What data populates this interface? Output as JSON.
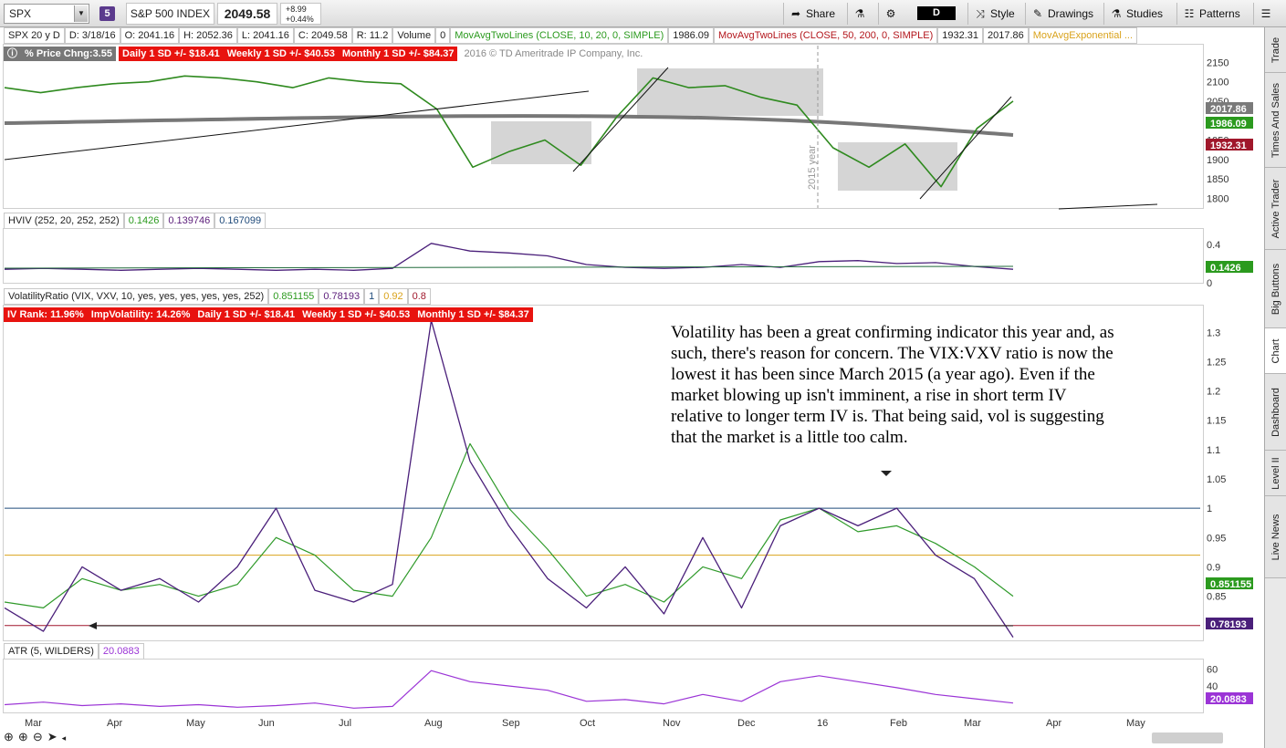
{
  "toolbar": {
    "symbol": "SPX",
    "link_badge": "5",
    "description": "S&P 500 INDEX",
    "last_price": "2049.58",
    "change_abs": "+8.99",
    "change_pct": "+0.44%",
    "share_label": "Share",
    "period": "D",
    "style_label": "Style",
    "drawings_label": "Drawings",
    "studies_label": "Studies",
    "patterns_label": "Patterns"
  },
  "price_header": {
    "chart_spec": "SPX 20 y D",
    "date": "D: 3/18/16",
    "open": "O: 2041.16",
    "high": "H: 2052.36",
    "low": "L: 2041.16",
    "close": "C: 2049.58",
    "range": "R: 11.2",
    "volume_label": "Volume",
    "volume_value": "0",
    "ma1_label": "MovAvgTwoLines (CLOSE, 10, 20, 0, SIMPLE)",
    "ma1_value": "1986.09",
    "ma2_label": "MovAvgTwoLines (CLOSE, 50, 200, 0, SIMPLE)",
    "ma2_value": "1932.31",
    "ma2_value2": "2017.86",
    "ema_label": "MovAvgExponential ..."
  },
  "price_labels": {
    "pct_change": "% Price Chng:3.55",
    "daily_sd": "Daily 1 SD +/- $18.41",
    "weekly_sd": "Weekly 1 SD +/- $40.53",
    "monthly_sd": "Monthly 1 SD +/- $84.37",
    "copyright": "2016 © TD Ameritrade IP Company, Inc.",
    "year_marker": "2015 year"
  },
  "hviv_header": {
    "label": "HVIV (252, 20, 252, 252)",
    "v1": "0.1426",
    "v2": "0.139746",
    "v3": "0.167099"
  },
  "vr_header": {
    "label": "VolatilityRatio (VIX, VXV, 10, yes, yes, yes, yes, yes, 252)",
    "v1": "0.851155",
    "v2": "0.78193",
    "v3": "1",
    "v4": "0.92",
    "v5": "0.8"
  },
  "vr_labels": {
    "iv_rank": "IV Rank: 11.96%",
    "imp_vol": "ImpVolatility: 14.26%",
    "daily_sd": "Daily 1 SD +/- $18.41",
    "weekly_sd": "Weekly 1 SD +/- $40.53",
    "monthly_sd": "Monthly 1 SD +/- $84.37"
  },
  "atr_header": {
    "label": "ATR (5, WILDERS)",
    "value": "20.0883"
  },
  "annotation": "Volatility has been a great confirming indicator this year and, as such, there's reason for concern.  The VIX:VXV ratio is now the lowest it has been since March 2015 (a year ago).  Even if the market blowing up isn't imminent, a rise in short term IV relative to longer term IV is.  That being said, vol is suggesting that the market is a little too calm.",
  "side_tabs": [
    "Trade",
    "Times And Sales",
    "Active Trader",
    "Big Buttons",
    "Chart",
    "Dashboard",
    "Level II",
    "Live News"
  ],
  "chart_data": [
    {
      "type": "line",
      "title": "SPX 20 y D",
      "x": [
        "2015-03-01",
        "2015-03-15",
        "2015-04-01",
        "2015-04-15",
        "2015-05-01",
        "2015-05-15",
        "2015-06-01",
        "2015-06-15",
        "2015-07-01",
        "2015-07-15",
        "2015-08-01",
        "2015-08-15",
        "2015-08-20",
        "2015-08-25",
        "2015-09-01",
        "2015-09-15",
        "2015-09-28",
        "2015-10-15",
        "2015-11-03",
        "2015-11-15",
        "2015-12-01",
        "2015-12-15",
        "2016-01-01",
        "2016-01-15",
        "2016-01-20",
        "2016-02-01",
        "2016-02-11",
        "2016-03-01",
        "2016-03-18"
      ],
      "series": [
        {
          "values": [
            2085,
            2072,
            2085,
            2095,
            2100,
            2115,
            2110,
            2100,
            2085,
            2110,
            2100,
            2095,
            2030,
            1880,
            1920,
            1950,
            1885,
            2010,
            2110,
            2085,
            2090,
            2060,
            2040,
            1930,
            1880,
            1940,
            1830,
            1980,
            2050
          ]
        }
      ],
      "moving_averages": {
        "ma10": "1986.09",
        "ma50": "1932.31",
        "ma200": "2017.86"
      },
      "ylim": [
        1775,
        2165
      ],
      "yticks": [
        1800,
        1850,
        1900,
        1950,
        2000,
        2050,
        2100,
        2150
      ]
    },
    {
      "type": "line",
      "title": "HVIV (252, 20, 252, 252)",
      "series": [
        {
          "values": [
            0.14,
            0.15,
            0.14,
            0.13,
            0.14,
            0.15,
            0.14,
            0.13,
            0.14,
            0.13,
            0.15,
            0.41,
            0.33,
            0.31,
            0.28,
            0.19,
            0.16,
            0.15,
            0.16,
            0.19,
            0.16,
            0.22,
            0.23,
            0.2,
            0.21,
            0.17,
            0.14
          ]
        }
      ],
      "ylim": [
        0,
        0.55
      ],
      "yticks": [
        0,
        0.4
      ]
    },
    {
      "type": "line",
      "title": "VolatilityRatio (VIX, VXV, 10, yes, yes, yes, yes, yes, 252)",
      "x": [
        "2015-03-01",
        "2015-03-10",
        "2015-04-01",
        "2015-04-20",
        "2015-05-10",
        "2015-06-01",
        "2015-06-20",
        "2015-07-01",
        "2015-07-10",
        "2015-07-25",
        "2015-08-10",
        "2015-08-24",
        "2015-09-01",
        "2015-09-15",
        "2015-10-01",
        "2015-10-20",
        "2015-11-10",
        "2015-12-01",
        "2015-12-14",
        "2015-12-31",
        "2016-01-10",
        "2016-01-20",
        "2016-02-01",
        "2016-02-11",
        "2016-02-25",
        "2016-03-10",
        "2016-03-18"
      ],
      "series": [
        {
          "values": [
            0.83,
            0.79,
            0.9,
            0.86,
            0.88,
            0.84,
            0.9,
            1.0,
            0.86,
            0.84,
            0.87,
            1.32,
            1.08,
            0.97,
            0.88,
            0.83,
            0.9,
            0.82,
            0.95,
            0.83,
            0.97,
            1.0,
            0.97,
            1.0,
            0.92,
            0.88,
            0.78
          ]
        },
        {
          "values": [
            0.84,
            0.83,
            0.88,
            0.86,
            0.87,
            0.85,
            0.87,
            0.95,
            0.92,
            0.86,
            0.85,
            0.95,
            1.11,
            1.0,
            0.93,
            0.85,
            0.87,
            0.84,
            0.9,
            0.88,
            0.98,
            1.0,
            0.96,
            0.97,
            0.94,
            0.9,
            0.85
          ]
        }
      ],
      "reference_lines": [
        1,
        0.92,
        0.8
      ],
      "ylim": [
        0.77,
        1.33
      ],
      "yticks": [
        0.8,
        0.85,
        0.9,
        0.95,
        1,
        1.05,
        1.1,
        1.15,
        1.2,
        1.25,
        1.3
      ]
    },
    {
      "type": "line",
      "title": "ATR (5, WILDERS)",
      "series": [
        {
          "values": [
            18,
            21,
            17,
            19,
            16,
            18,
            15,
            17,
            20,
            14,
            16,
            58,
            45,
            40,
            35,
            22,
            24,
            19,
            30,
            22,
            45,
            52,
            45,
            38,
            30,
            25,
            20
          ]
        }
      ],
      "ylim": [
        10,
        70
      ],
      "yticks": [
        40,
        60
      ]
    }
  ],
  "x_axis_labels": [
    "Mar",
    "Apr",
    "May",
    "Jun",
    "Jul",
    "Aug",
    "Sep",
    "Oct",
    "Nov",
    "Dec",
    "16",
    "Feb",
    "Mar",
    "Apr",
    "May"
  ]
}
